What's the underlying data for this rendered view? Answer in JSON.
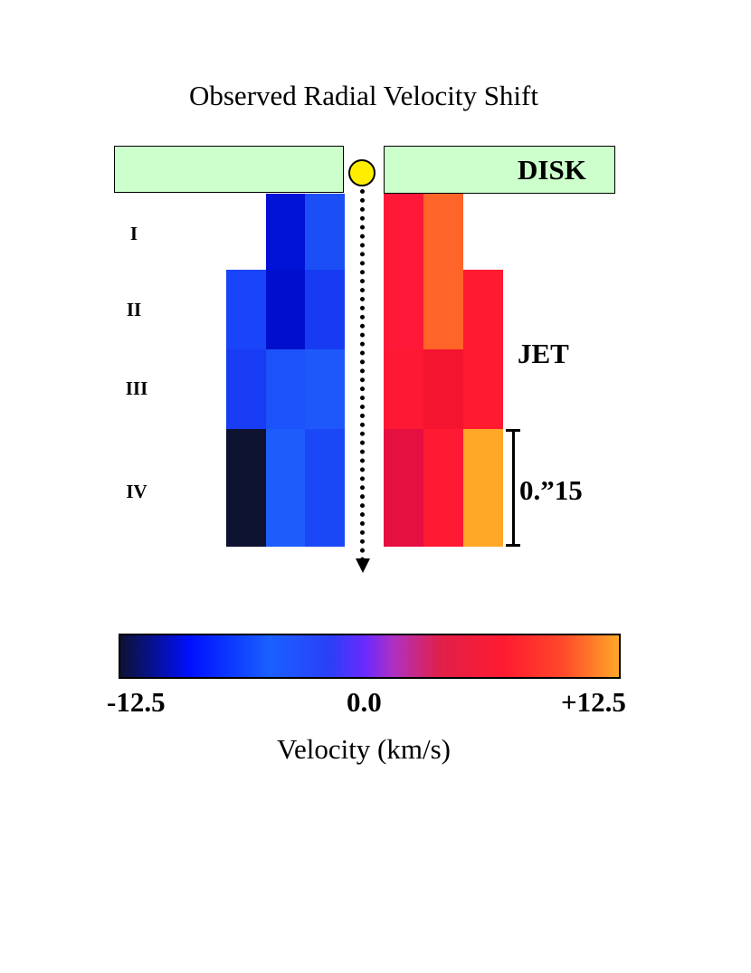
{
  "title": "Observed Radial Velocity Shift",
  "disk_label": "DISK",
  "jet_label": "JET",
  "scale_label": "0.”15",
  "rows": [
    "I",
    "II",
    "III",
    "IV"
  ],
  "colorbar": {
    "min_label": "-12.5",
    "mid_label": "0.0",
    "max_label": "+12.5",
    "xlabel": "Velocity (km/s)",
    "range": [
      -12.5,
      12.5
    ]
  },
  "colors": {
    "disk": "#ccffcc",
    "star": "#ffee00"
  },
  "cells": [
    {
      "side": "blue",
      "row": 1,
      "col": 2,
      "color": "#0012d6"
    },
    {
      "side": "blue",
      "row": 1,
      "col": 3,
      "color": "#1b4ff5"
    },
    {
      "side": "red",
      "row": 1,
      "col": 1,
      "color": "#ff1838"
    },
    {
      "side": "red",
      "row": 1,
      "col": 2,
      "color": "#ff6428"
    },
    {
      "side": "blue",
      "row": 2,
      "col": 1,
      "color": "#1a44f8"
    },
    {
      "side": "blue",
      "row": 2,
      "col": 2,
      "color": "#000fcc"
    },
    {
      "side": "blue",
      "row": 2,
      "col": 3,
      "color": "#163bf2"
    },
    {
      "side": "red",
      "row": 2,
      "col": 1,
      "color": "#ff1838"
    },
    {
      "side": "red",
      "row": 2,
      "col": 2,
      "color": "#ff6428"
    },
    {
      "side": "red",
      "row": 2,
      "col": 3,
      "color": "#ff1a30"
    },
    {
      "side": "blue",
      "row": 3,
      "col": 1,
      "color": "#173cf4"
    },
    {
      "side": "blue",
      "row": 3,
      "col": 2,
      "color": "#1c52fa"
    },
    {
      "side": "blue",
      "row": 3,
      "col": 3,
      "color": "#1f58fa"
    },
    {
      "side": "red",
      "row": 3,
      "col": 1,
      "color": "#ff1834"
    },
    {
      "side": "red",
      "row": 3,
      "col": 2,
      "color": "#f51430"
    },
    {
      "side": "red",
      "row": 3,
      "col": 3,
      "color": "#ff1a30"
    },
    {
      "side": "blue",
      "row": 4,
      "col": 1,
      "color": "#0c1230"
    },
    {
      "side": "blue",
      "row": 4,
      "col": 2,
      "color": "#1e5cfb"
    },
    {
      "side": "blue",
      "row": 4,
      "col": 3,
      "color": "#1a48f6"
    },
    {
      "side": "red",
      "row": 4,
      "col": 1,
      "color": "#e51040"
    },
    {
      "side": "red",
      "row": 4,
      "col": 2,
      "color": "#ff1a34"
    },
    {
      "side": "red",
      "row": 4,
      "col": 3,
      "color": "#ffa828"
    }
  ]
}
